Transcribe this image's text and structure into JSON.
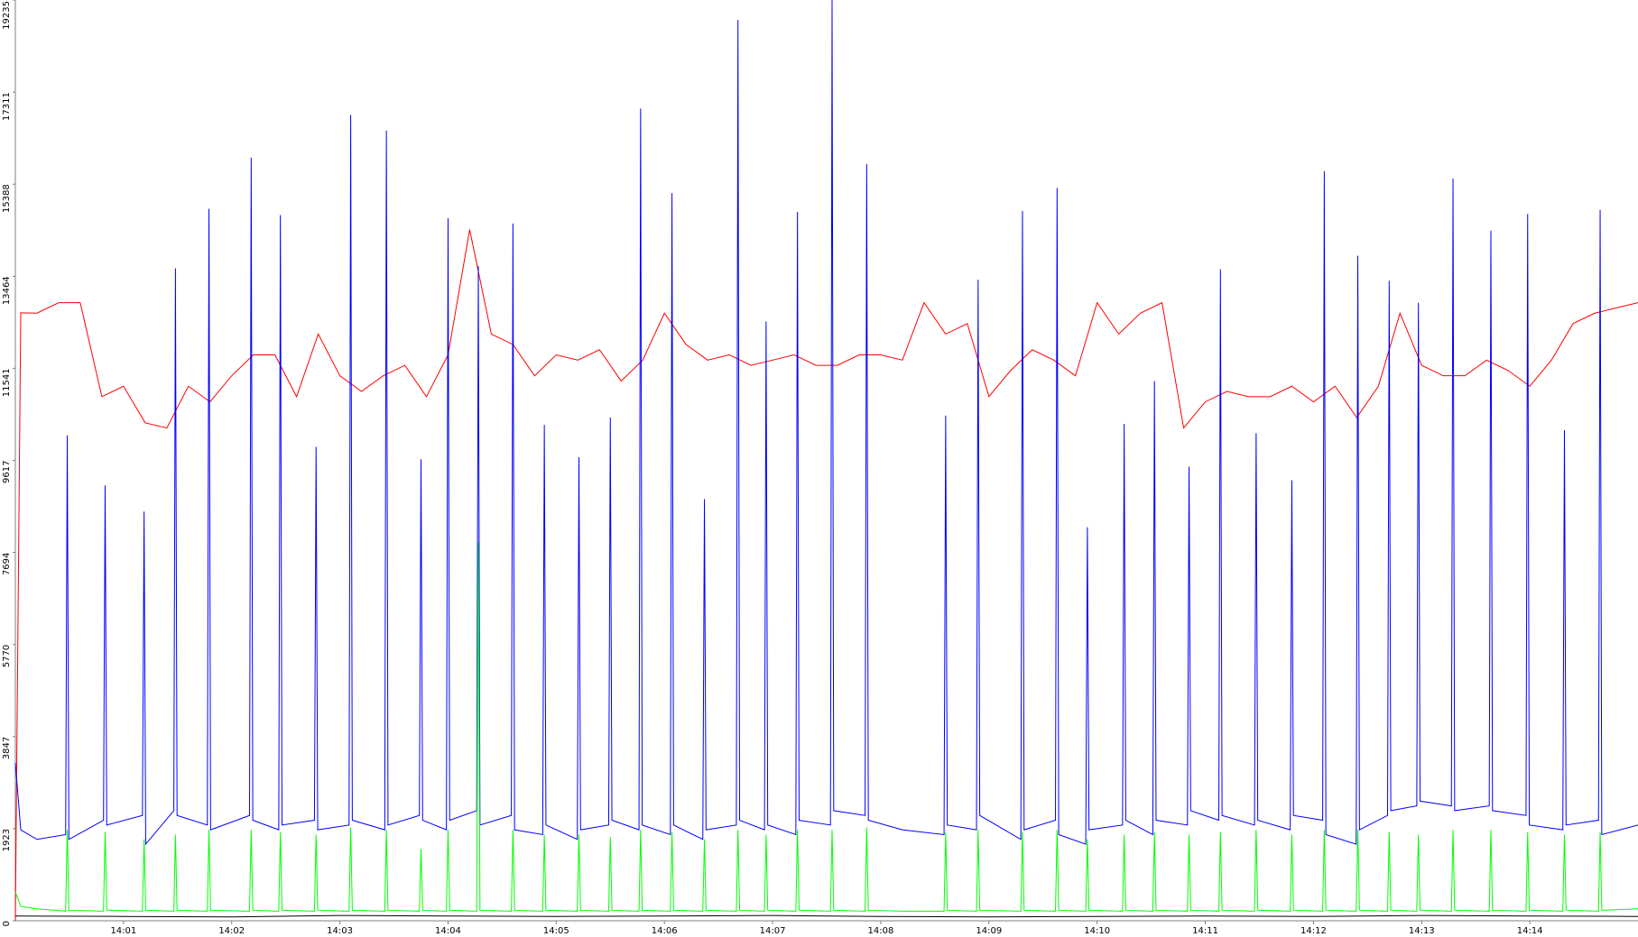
{
  "chart_data": {
    "type": "line",
    "xlim": [
      0,
      15
    ],
    "xticks": [
      {
        "value": 1,
        "label": "14:01"
      },
      {
        "value": 2,
        "label": "14:02"
      },
      {
        "value": 3,
        "label": "14:03"
      },
      {
        "value": 4,
        "label": "14:04"
      },
      {
        "value": 5,
        "label": "14:05"
      },
      {
        "value": 6,
        "label": "14:06"
      },
      {
        "value": 7,
        "label": "14:07"
      },
      {
        "value": 8,
        "label": "14:08"
      },
      {
        "value": 9,
        "label": "14:09"
      },
      {
        "value": 10,
        "label": "14:10"
      },
      {
        "value": 11,
        "label": "14:11"
      },
      {
        "value": 12,
        "label": "14:12"
      },
      {
        "value": 13,
        "label": "14:13"
      },
      {
        "value": 14,
        "label": "14:14"
      }
    ],
    "ylim": [
      0,
      19235
    ],
    "yticks": [
      0,
      1923,
      3847,
      5770,
      7694,
      9617,
      11541,
      13464,
      15388,
      17311,
      19235
    ],
    "series": [
      {
        "color": "#ff0000",
        "x": [
          0,
          0.05,
          0.2,
          0.4,
          0.6,
          0.8,
          1.0,
          1.2,
          1.4,
          1.6,
          1.8,
          2.0,
          2.2,
          2.4,
          2.6,
          2.8,
          3.0,
          3.2,
          3.4,
          3.6,
          3.8,
          4.0,
          4.2,
          4.4,
          4.6,
          4.8,
          5.0,
          5.2,
          5.4,
          5.6,
          5.8,
          6.0,
          6.2,
          6.4,
          6.6,
          6.8,
          7.0,
          7.2,
          7.4,
          7.6,
          7.8,
          8.0,
          8.2,
          8.4,
          8.6,
          8.8,
          9.0,
          9.2,
          9.4,
          9.6,
          9.8,
          10.0,
          10.2,
          10.4,
          10.6,
          10.8,
          11.0,
          11.2,
          11.4,
          11.6,
          11.8,
          12.0,
          12.2,
          12.4,
          12.6,
          12.8,
          13.0,
          13.2,
          13.4,
          13.6,
          13.8,
          14.0,
          14.2,
          14.4,
          14.6,
          14.8,
          15.0
        ],
        "values": [
          0,
          12700,
          12693,
          12912,
          12912,
          10949,
          11167,
          10403,
          10294,
          11167,
          10840,
          11385,
          11821,
          11821,
          10949,
          12257,
          11385,
          11058,
          11385,
          11603,
          10949,
          11821,
          14438,
          12257,
          12039,
          11385,
          11821,
          11712,
          11930,
          11276,
          11712,
          12693,
          12039,
          11712,
          11821,
          11603,
          11712,
          11821,
          11603,
          11603,
          11821,
          11821,
          11712,
          12912,
          12257,
          12475,
          10949,
          11494,
          11930,
          11712,
          11385,
          12912,
          12257,
          12693,
          12912,
          10294,
          10840,
          11058,
          10949,
          10949,
          11167,
          10840,
          11167,
          10512,
          11167,
          12693,
          11603,
          11385,
          11385,
          11712,
          11494,
          11167,
          11712,
          12475,
          12693,
          12803,
          12912
        ]
      },
      {
        "color": "#0000ff",
        "x": [
          0,
          0.05,
          0.2,
          0.465,
          0.48,
          0.495,
          0.815,
          0.83,
          0.845,
          1.175,
          1.19,
          1.205,
          1.465,
          1.48,
          1.495,
          1.775,
          1.79,
          1.805,
          2.165,
          2.18,
          2.195,
          2.435,
          2.45,
          2.465,
          2.765,
          2.78,
          2.795,
          3.085,
          3.1,
          3.115,
          3.415,
          3.43,
          3.445,
          3.735,
          3.75,
          3.765,
          3.985,
          4.0,
          4.015,
          4.265,
          4.28,
          4.295,
          4.585,
          4.6,
          4.615,
          4.875,
          4.89,
          4.905,
          5.195,
          5.21,
          5.225,
          5.485,
          5.5,
          5.515,
          5.765,
          5.78,
          5.795,
          6.055,
          6.07,
          6.085,
          6.355,
          6.37,
          6.385,
          6.665,
          6.68,
          6.695,
          6.925,
          6.94,
          6.955,
          7.215,
          7.23,
          7.245,
          7.535,
          7.55,
          7.565,
          7.855,
          7.87,
          7.885,
          8.2,
          8.585,
          8.6,
          8.615,
          8.885,
          8.9,
          8.915,
          9.295,
          9.31,
          9.325,
          9.615,
          9.63,
          9.645,
          9.895,
          9.91,
          9.925,
          10.235,
          10.25,
          10.265,
          10.515,
          10.53,
          10.545,
          10.835,
          10.85,
          10.865,
          11.125,
          11.14,
          11.155,
          11.455,
          11.47,
          11.485,
          11.785,
          11.8,
          11.815,
          12.085,
          12.1,
          12.115,
          12.395,
          12.41,
          12.425,
          12.685,
          12.7,
          12.715,
          12.955,
          12.97,
          12.985,
          13.275,
          13.29,
          13.305,
          13.625,
          13.64,
          13.655,
          13.965,
          13.98,
          13.995,
          14.305,
          14.32,
          14.335,
          14.635,
          14.65,
          14.665,
          15
        ],
        "values": [
          3300,
          1900,
          1700,
          1800,
          10141,
          1700,
          2100,
          9094,
          2000,
          2200,
          8549,
          1600,
          2300,
          13630,
          2200,
          2000,
          14873,
          1900,
          2200,
          15942,
          2100,
          1900,
          14743,
          2000,
          2100,
          9901,
          1900,
          2000,
          16836,
          2100,
          1900,
          16509,
          2000,
          2200,
          9640,
          2100,
          1900,
          14677,
          2100,
          2300,
          13674,
          2000,
          2200,
          14568,
          1900,
          1800,
          10359,
          2000,
          1700,
          9683,
          1900,
          2000,
          10512,
          2100,
          1900,
          16967,
          2000,
          1800,
          15200,
          2000,
          1700,
          8810,
          1900,
          2000,
          18821,
          2100,
          1900,
          12518,
          2000,
          1800,
          14808,
          2100,
          2000,
          19235,
          2300,
          2200,
          15811,
          2100,
          1900,
          1800,
          10555,
          2000,
          1900,
          13390,
          2200,
          1700,
          14830,
          1900,
          2100,
          15310,
          1800,
          1600,
          8222,
          1900,
          2000,
          10381,
          2100,
          1800,
          11275,
          2100,
          2000,
          9487,
          2300,
          2100,
          13609,
          2200,
          2000,
          10185,
          2100,
          1900,
          9203,
          2200,
          2100,
          15659,
          1800,
          1600,
          13892,
          1900,
          2200,
          13369,
          2300,
          2400,
          12911,
          2500,
          2400,
          15506,
          2300,
          2400,
          14416,
          2300,
          2200,
          14765,
          2000,
          1900,
          10250,
          2000,
          2100,
          14852,
          1800,
          2000
        ]
      },
      {
        "color": "#00ff00",
        "x": [
          0,
          0.05,
          0.2,
          0.465,
          0.48,
          0.495,
          0.815,
          0.83,
          0.845,
          1.175,
          1.19,
          1.205,
          1.465,
          1.48,
          1.495,
          1.775,
          1.79,
          1.805,
          2.165,
          2.18,
          2.195,
          2.435,
          2.45,
          2.465,
          2.765,
          2.78,
          2.795,
          3.085,
          3.1,
          3.115,
          3.415,
          3.43,
          3.445,
          3.735,
          3.75,
          3.765,
          3.985,
          4.0,
          4.015,
          4.265,
          4.28,
          4.295,
          4.585,
          4.6,
          4.615,
          4.875,
          4.89,
          4.905,
          5.195,
          5.21,
          5.225,
          5.485,
          5.5,
          5.515,
          5.765,
          5.78,
          5.795,
          6.055,
          6.07,
          6.085,
          6.355,
          6.37,
          6.385,
          6.665,
          6.68,
          6.695,
          6.925,
          6.94,
          6.955,
          7.215,
          7.23,
          7.245,
          7.535,
          7.55,
          7.565,
          7.855,
          7.87,
          7.885,
          8.2,
          8.585,
          8.6,
          8.615,
          8.885,
          8.9,
          8.915,
          9.295,
          9.31,
          9.325,
          9.615,
          9.63,
          9.645,
          9.895,
          9.91,
          9.925,
          10.235,
          10.25,
          10.265,
          10.515,
          10.53,
          10.545,
          10.835,
          10.85,
          10.865,
          11.125,
          11.14,
          11.155,
          11.455,
          11.47,
          11.485,
          11.785,
          11.8,
          11.815,
          12.085,
          12.1,
          12.115,
          12.395,
          12.41,
          12.425,
          12.685,
          12.7,
          12.715,
          12.955,
          12.97,
          12.985,
          13.275,
          13.29,
          13.305,
          13.625,
          13.64,
          13.655,
          13.965,
          13.98,
          13.995,
          14.305,
          14.32,
          14.335,
          14.635,
          14.65,
          14.665,
          15
        ],
        "values": [
          600,
          300,
          250,
          200,
          1900,
          220,
          200,
          1850,
          220,
          200,
          1700,
          220,
          200,
          1800,
          220,
          200,
          1900,
          220,
          200,
          1900,
          220,
          200,
          1850,
          220,
          200,
          1800,
          220,
          200,
          1950,
          220,
          200,
          1900,
          220,
          200,
          1500,
          220,
          200,
          1900,
          220,
          200,
          7900,
          220,
          200,
          1900,
          220,
          200,
          1800,
          220,
          200,
          1800,
          220,
          200,
          1750,
          220,
          200,
          1900,
          220,
          200,
          1850,
          220,
          200,
          1700,
          220,
          200,
          1900,
          220,
          200,
          1800,
          220,
          200,
          1900,
          220,
          200,
          1900,
          220,
          200,
          1950,
          220,
          200,
          200,
          1850,
          220,
          200,
          1900,
          220,
          200,
          1850,
          220,
          200,
          1900,
          220,
          200,
          1700,
          220,
          200,
          1800,
          220,
          200,
          1850,
          220,
          200,
          1800,
          220,
          200,
          1850,
          220,
          200,
          1900,
          220,
          200,
          1800,
          220,
          200,
          1900,
          220,
          200,
          1900,
          220,
          200,
          1850,
          220,
          200,
          1800,
          220,
          200,
          1900,
          220,
          200,
          1900,
          220,
          200,
          1850,
          220,
          200,
          1800,
          220,
          200,
          1850,
          220,
          250
        ]
      },
      {
        "color": "#000000",
        "x": [
          0,
          1,
          2,
          3,
          4,
          5,
          6,
          7,
          8,
          9,
          10,
          11,
          12,
          13,
          14,
          15
        ],
        "values": [
          100,
          90,
          80,
          110,
          100,
          90,
          100,
          110,
          90,
          80,
          90,
          100,
          90,
          110,
          100,
          90
        ]
      }
    ]
  }
}
